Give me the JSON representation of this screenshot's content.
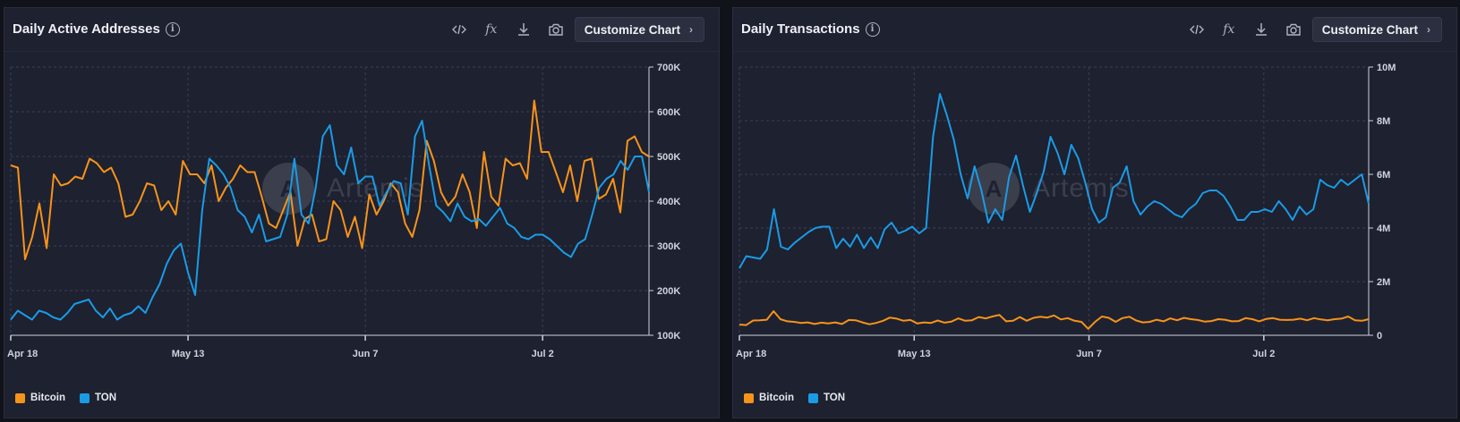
{
  "colors": {
    "bitcoin": "#f7931a",
    "ton": "#1a9be6",
    "grid": "#3a3f52",
    "axis": "#cfd3dd"
  },
  "toolbar": {
    "code_icon": "code-icon",
    "fx_label": "fx",
    "download_icon": "download-icon",
    "camera_icon": "camera-icon",
    "customize_label": "Customize Chart",
    "chevron": "›"
  },
  "watermark": "Artemis",
  "charts": [
    {
      "title": "Daily Active Addresses",
      "legend": [
        "Bitcoin",
        "TON"
      ]
    },
    {
      "title": "Daily Transactions",
      "legend": [
        "Bitcoin",
        "TON"
      ]
    }
  ],
  "chart_data": [
    {
      "type": "line",
      "title": "Daily Active Addresses",
      "x_tick_labels": [
        "Apr 18",
        "May 13",
        "Jun 7",
        "Jul 2"
      ],
      "x_tick_index": [
        0,
        25,
        50,
        75
      ],
      "y_tick_labels": [
        "100K",
        "200K",
        "300K",
        "400K",
        "500K",
        "600K",
        "700K"
      ],
      "ylim": [
        100000,
        700000
      ],
      "grid": true,
      "legend_position": "bottom-left",
      "series": [
        {
          "name": "Bitcoin",
          "values": [
            480000,
            475000,
            270000,
            320000,
            395000,
            295000,
            460000,
            435000,
            440000,
            455000,
            450000,
            495000,
            485000,
            465000,
            475000,
            440000,
            365000,
            370000,
            400000,
            440000,
            435000,
            380000,
            400000,
            370000,
            490000,
            460000,
            460000,
            440000,
            480000,
            400000,
            430000,
            450000,
            480000,
            465000,
            465000,
            410000,
            350000,
            340000,
            380000,
            420000,
            300000,
            360000,
            370000,
            310000,
            315000,
            400000,
            380000,
            320000,
            365000,
            295000,
            415000,
            370000,
            400000,
            440000,
            420000,
            350000,
            320000,
            380000,
            535000,
            490000,
            420000,
            390000,
            410000,
            460000,
            420000,
            340000,
            510000,
            410000,
            390000,
            495000,
            480000,
            485000,
            450000,
            625000,
            510000,
            510000,
            465000,
            420000,
            480000,
            400000,
            490000,
            495000,
            405000,
            415000,
            450000,
            375000,
            535000,
            545000,
            510000,
            500000
          ]
        },
        {
          "name": "TON",
          "values": [
            135000,
            155000,
            145000,
            135000,
            155000,
            150000,
            140000,
            135000,
            150000,
            170000,
            175000,
            180000,
            155000,
            140000,
            160000,
            135000,
            145000,
            150000,
            165000,
            150000,
            185000,
            215000,
            260000,
            290000,
            305000,
            240000,
            190000,
            380000,
            495000,
            480000,
            460000,
            430000,
            380000,
            365000,
            330000,
            370000,
            310000,
            315000,
            320000,
            370000,
            495000,
            370000,
            350000,
            430000,
            545000,
            570000,
            480000,
            460000,
            520000,
            440000,
            455000,
            455000,
            390000,
            420000,
            445000,
            440000,
            370000,
            545000,
            580000,
            480000,
            390000,
            375000,
            355000,
            395000,
            365000,
            355000,
            360000,
            345000,
            365000,
            385000,
            350000,
            340000,
            320000,
            315000,
            325000,
            325000,
            315000,
            300000,
            285000,
            275000,
            305000,
            315000,
            370000,
            430000,
            450000,
            460000,
            490000,
            470000,
            500000,
            500000,
            420000
          ]
        }
      ]
    },
    {
      "type": "line",
      "title": "Daily Transactions",
      "x_tick_labels": [
        "Apr 18",
        "May 13",
        "Jun 7",
        "Jul 2"
      ],
      "x_tick_index": [
        0,
        25,
        50,
        75
      ],
      "y_tick_labels": [
        "0",
        "2M",
        "4M",
        "6M",
        "8M",
        "10M"
      ],
      "ylim": [
        0,
        10000000
      ],
      "grid": true,
      "legend_position": "bottom-left",
      "series": [
        {
          "name": "Bitcoin",
          "values": [
            400000,
            380000,
            550000,
            560000,
            580000,
            900000,
            600000,
            520000,
            500000,
            460000,
            480000,
            420000,
            470000,
            440000,
            480000,
            420000,
            570000,
            560000,
            480000,
            410000,
            460000,
            540000,
            660000,
            620000,
            540000,
            570000,
            440000,
            480000,
            460000,
            550000,
            470000,
            510000,
            630000,
            540000,
            560000,
            680000,
            630000,
            700000,
            760000,
            520000,
            540000,
            680000,
            540000,
            650000,
            690000,
            660000,
            740000,
            590000,
            640000,
            540000,
            500000,
            240000,
            500000,
            700000,
            650000,
            500000,
            640000,
            690000,
            550000,
            480000,
            500000,
            580000,
            520000,
            630000,
            560000,
            650000,
            600000,
            570000,
            510000,
            530000,
            600000,
            580000,
            520000,
            530000,
            640000,
            600000,
            520000,
            610000,
            640000,
            580000,
            570000,
            580000,
            620000,
            560000,
            640000,
            590000,
            560000,
            600000,
            620000,
            700000,
            560000,
            540000,
            600000
          ]
        },
        {
          "name": "TON",
          "values": [
            2500000,
            2950000,
            2900000,
            2850000,
            3200000,
            4700000,
            3300000,
            3200000,
            3450000,
            3650000,
            3850000,
            4000000,
            4050000,
            4050000,
            3250000,
            3600000,
            3300000,
            3750000,
            3250000,
            3650000,
            3250000,
            3950000,
            4200000,
            3800000,
            3900000,
            4050000,
            3800000,
            4000000,
            7400000,
            9000000,
            8200000,
            7300000,
            6000000,
            5100000,
            6300000,
            5400000,
            4200000,
            4700000,
            4300000,
            5900000,
            6700000,
            5600000,
            4600000,
            5300000,
            6100000,
            7400000,
            6800000,
            6000000,
            7100000,
            6600000,
            5700000,
            4700000,
            4200000,
            4400000,
            5500000,
            5700000,
            6300000,
            5000000,
            4500000,
            4800000,
            5000000,
            4900000,
            4700000,
            4500000,
            4400000,
            4700000,
            4900000,
            5300000,
            5400000,
            5400000,
            5200000,
            4800000,
            4300000,
            4300000,
            4600000,
            4600000,
            4700000,
            4600000,
            5000000,
            4700000,
            4300000,
            4800000,
            4500000,
            4700000,
            5800000,
            5600000,
            5500000,
            5800000,
            5600000,
            5800000,
            6000000,
            4900000
          ]
        }
      ]
    }
  ]
}
